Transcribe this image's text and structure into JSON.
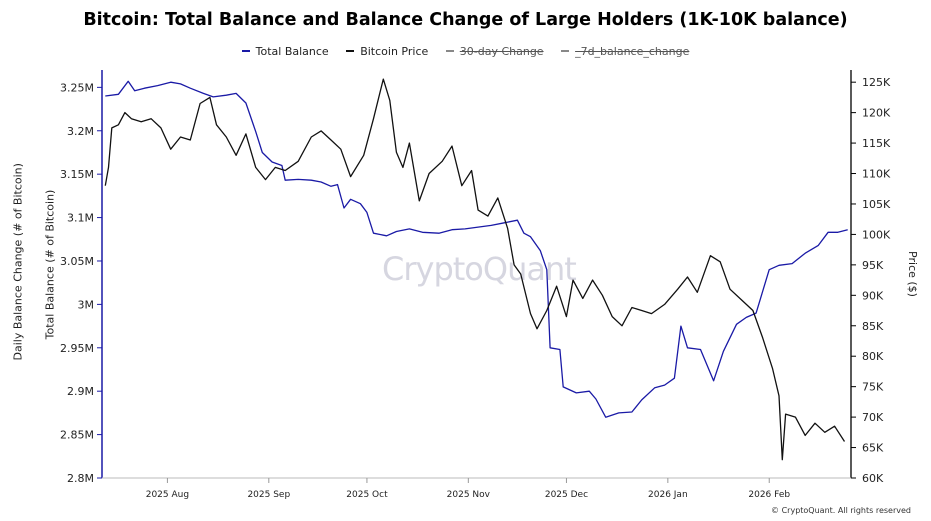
{
  "chart_data": {
    "type": "line",
    "title": "Bitcoin: Total Balance and Balance Change of Large Holders (1K-10K balance)",
    "legend": [
      {
        "name": "Total Balance",
        "color": "#1a1aa6",
        "hidden": false
      },
      {
        "name": "Bitcoin Price",
        "color": "#111111",
        "hidden": false
      },
      {
        "name": "30-day Change",
        "color": "#888888",
        "hidden": true
      },
      {
        "name": "_7d_balance_change",
        "color": "#888888",
        "hidden": true
      }
    ],
    "legend_position": "top-center",
    "ylabel_left_outer": "Daily Balance Change (# of Bitcoin)",
    "ylabel_left": "Total Balance (# of Bitcoin)",
    "ylabel_right": "Price ($)",
    "y_left_ticks": [
      "3.25M",
      "3.2M",
      "3.15M",
      "3.1M",
      "3.05M",
      "3M",
      "2.95M",
      "2.9M",
      "2.85M",
      "2.8M"
    ],
    "y_right_ticks": [
      "125K",
      "120K",
      "115K",
      "110K",
      "105K",
      "100K",
      "95K",
      "90K",
      "85K",
      "80K",
      "75K",
      "70K",
      "65K",
      "60K"
    ],
    "x_ticks": [
      {
        "label": "2025 Aug",
        "date": "2025-08-01"
      },
      {
        "label": "2025 Sep",
        "date": "2025-09-01"
      },
      {
        "label": "2025 Oct",
        "date": "2025-10-01"
      },
      {
        "label": "2025 Nov",
        "date": "2025-11-01"
      },
      {
        "label": "2025 Dec",
        "date": "2025-12-01"
      },
      {
        "label": "2026 Jan",
        "date": "2026-01-01"
      },
      {
        "label": "2026 Feb",
        "date": "2026-02-01"
      }
    ],
    "x_range": [
      "2025-07-12",
      "2026-02-26"
    ],
    "y_left_range": [
      2800000,
      3270000
    ],
    "y_right_range": [
      60000,
      127000
    ],
    "grid": false,
    "series": [
      {
        "name": "Total Balance",
        "axis": "left",
        "color": "#1a1aa6",
        "points": [
          [
            "2025-07-13",
            3240000
          ],
          [
            "2025-07-17",
            3242000
          ],
          [
            "2025-07-20",
            3257000
          ],
          [
            "2025-07-22",
            3246000
          ],
          [
            "2025-07-25",
            3249000
          ],
          [
            "2025-07-29",
            3252000
          ],
          [
            "2025-08-02",
            3256000
          ],
          [
            "2025-08-05",
            3254000
          ],
          [
            "2025-08-08",
            3249000
          ],
          [
            "2025-08-12",
            3243000
          ],
          [
            "2025-08-15",
            3239000
          ],
          [
            "2025-08-19",
            3241000
          ],
          [
            "2025-08-22",
            3243000
          ],
          [
            "2025-08-25",
            3232000
          ],
          [
            "2025-08-28",
            3199000
          ],
          [
            "2025-08-30",
            3175000
          ],
          [
            "2025-09-02",
            3164000
          ],
          [
            "2025-09-05",
            3160000
          ],
          [
            "2025-09-06",
            3143000
          ],
          [
            "2025-09-10",
            3144000
          ],
          [
            "2025-09-14",
            3143000
          ],
          [
            "2025-09-17",
            3141000
          ],
          [
            "2025-09-20",
            3136000
          ],
          [
            "2025-09-22",
            3138000
          ],
          [
            "2025-09-24",
            3111000
          ],
          [
            "2025-09-26",
            3121000
          ],
          [
            "2025-09-29",
            3116000
          ],
          [
            "2025-10-01",
            3106000
          ],
          [
            "2025-10-03",
            3082000
          ],
          [
            "2025-10-07",
            3079000
          ],
          [
            "2025-10-10",
            3084000
          ],
          [
            "2025-10-14",
            3087000
          ],
          [
            "2025-10-18",
            3083000
          ],
          [
            "2025-10-23",
            3082000
          ],
          [
            "2025-10-27",
            3086000
          ],
          [
            "2025-10-31",
            3087000
          ],
          [
            "2025-11-04",
            3089000
          ],
          [
            "2025-11-08",
            3091000
          ],
          [
            "2025-11-12",
            3094000
          ],
          [
            "2025-11-16",
            3097000
          ],
          [
            "2025-11-18",
            3082000
          ],
          [
            "2025-11-20",
            3078000
          ],
          [
            "2025-11-23",
            3062000
          ],
          [
            "2025-11-25",
            3040000
          ],
          [
            "2025-11-26",
            2950000
          ],
          [
            "2025-11-29",
            2948000
          ],
          [
            "2025-11-30",
            2905000
          ],
          [
            "2025-12-04",
            2898000
          ],
          [
            "2025-12-08",
            2900000
          ],
          [
            "2025-12-10",
            2891000
          ],
          [
            "2025-12-13",
            2870000
          ],
          [
            "2025-12-17",
            2875000
          ],
          [
            "2025-12-21",
            2876000
          ],
          [
            "2025-12-24",
            2890000
          ],
          [
            "2025-12-28",
            2904000
          ],
          [
            "2025-12-31",
            2907000
          ],
          [
            "2026-01-03",
            2915000
          ],
          [
            "2026-01-05",
            2975000
          ],
          [
            "2026-01-07",
            2950000
          ],
          [
            "2026-01-11",
            2948000
          ],
          [
            "2026-01-15",
            2912000
          ],
          [
            "2026-01-18",
            2946000
          ],
          [
            "2026-01-22",
            2977000
          ],
          [
            "2026-01-25",
            2985000
          ],
          [
            "2026-01-28",
            2990000
          ],
          [
            "2026-02-01",
            3040000
          ],
          [
            "2026-02-04",
            3045000
          ],
          [
            "2026-02-08",
            3047000
          ],
          [
            "2026-02-12",
            3059000
          ],
          [
            "2026-02-16",
            3068000
          ],
          [
            "2026-02-19",
            3083000
          ],
          [
            "2026-02-22",
            3083000
          ],
          [
            "2026-02-25",
            3086000
          ]
        ]
      },
      {
        "name": "Bitcoin Price",
        "axis": "right",
        "color": "#111111",
        "points": [
          [
            "2025-07-13",
            108000
          ],
          [
            "2025-07-14",
            111000
          ],
          [
            "2025-07-15",
            117500
          ],
          [
            "2025-07-17",
            118000
          ],
          [
            "2025-07-19",
            120000
          ],
          [
            "2025-07-21",
            119000
          ],
          [
            "2025-07-24",
            118500
          ],
          [
            "2025-07-27",
            119000
          ],
          [
            "2025-07-30",
            117500
          ],
          [
            "2025-08-02",
            114000
          ],
          [
            "2025-08-05",
            116000
          ],
          [
            "2025-08-08",
            115500
          ],
          [
            "2025-08-11",
            121500
          ],
          [
            "2025-08-14",
            122500
          ],
          [
            "2025-08-16",
            118000
          ],
          [
            "2025-08-19",
            116000
          ],
          [
            "2025-08-22",
            113000
          ],
          [
            "2025-08-25",
            116500
          ],
          [
            "2025-08-28",
            111000
          ],
          [
            "2025-08-31",
            109000
          ],
          [
            "2025-09-03",
            111000
          ],
          [
            "2025-09-06",
            110500
          ],
          [
            "2025-09-10",
            112000
          ],
          [
            "2025-09-14",
            116000
          ],
          [
            "2025-09-17",
            117000
          ],
          [
            "2025-09-20",
            115500
          ],
          [
            "2025-09-23",
            114000
          ],
          [
            "2025-09-26",
            109500
          ],
          [
            "2025-09-30",
            113000
          ],
          [
            "2025-10-03",
            119000
          ],
          [
            "2025-10-06",
            125500
          ],
          [
            "2025-10-08",
            122000
          ],
          [
            "2025-10-10",
            113500
          ],
          [
            "2025-10-12",
            111000
          ],
          [
            "2025-10-14",
            115000
          ],
          [
            "2025-10-17",
            105500
          ],
          [
            "2025-10-20",
            110000
          ],
          [
            "2025-10-24",
            112000
          ],
          [
            "2025-10-27",
            114500
          ],
          [
            "2025-10-30",
            108000
          ],
          [
            "2025-11-02",
            110500
          ],
          [
            "2025-11-04",
            104000
          ],
          [
            "2025-11-07",
            103000
          ],
          [
            "2025-11-10",
            106000
          ],
          [
            "2025-11-13",
            101000
          ],
          [
            "2025-11-15",
            95000
          ],
          [
            "2025-11-17",
            93500
          ],
          [
            "2025-11-20",
            87000
          ],
          [
            "2025-11-22",
            84500
          ],
          [
            "2025-11-25",
            87500
          ],
          [
            "2025-11-28",
            91500
          ],
          [
            "2025-12-01",
            86500
          ],
          [
            "2025-12-03",
            92500
          ],
          [
            "2025-12-06",
            89500
          ],
          [
            "2025-12-09",
            92500
          ],
          [
            "2025-12-12",
            90000
          ],
          [
            "2025-12-15",
            86500
          ],
          [
            "2025-12-18",
            85000
          ],
          [
            "2025-12-21",
            88000
          ],
          [
            "2025-12-24",
            87500
          ],
          [
            "2025-12-27",
            87000
          ],
          [
            "2025-12-31",
            88500
          ],
          [
            "2026-01-04",
            91000
          ],
          [
            "2026-01-07",
            93000
          ],
          [
            "2026-01-10",
            90500
          ],
          [
            "2026-01-14",
            96500
          ],
          [
            "2026-01-17",
            95500
          ],
          [
            "2026-01-20",
            91000
          ],
          [
            "2026-01-24",
            89000
          ],
          [
            "2026-01-27",
            87500
          ],
          [
            "2026-01-30",
            83000
          ],
          [
            "2026-02-02",
            78000
          ],
          [
            "2026-02-04",
            73500
          ],
          [
            "2026-02-05",
            63000
          ],
          [
            "2026-02-06",
            70500
          ],
          [
            "2026-02-09",
            70000
          ],
          [
            "2026-02-12",
            67000
          ],
          [
            "2026-02-15",
            69000
          ],
          [
            "2026-02-18",
            67500
          ],
          [
            "2026-02-21",
            68500
          ],
          [
            "2026-02-24",
            66000
          ]
        ]
      }
    ],
    "watermark": "CryptoQuant",
    "credit": "© CryptoQuant. All rights reserved"
  }
}
